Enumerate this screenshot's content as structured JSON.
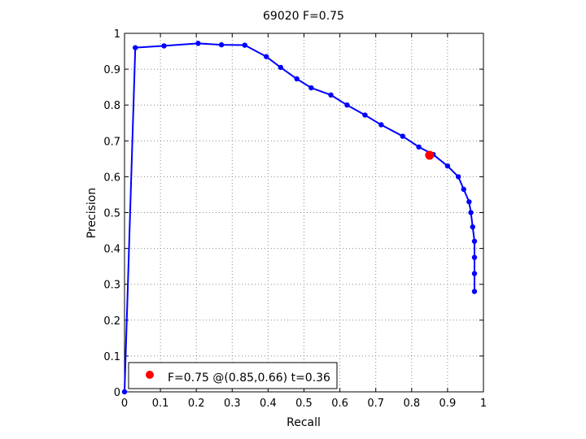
{
  "chart_data": {
    "type": "line",
    "title": "69020 F=0.75",
    "xlabel": "Recall",
    "ylabel": "Precision",
    "xlim": [
      0,
      1
    ],
    "ylim": [
      0,
      1
    ],
    "grid": true,
    "xticks": [
      "0",
      "0.1",
      "0.2",
      "0.3",
      "0.4",
      "0.5",
      "0.6",
      "0.7",
      "0.8",
      "0.9",
      "1"
    ],
    "yticks": [
      "0",
      "0.1",
      "0.2",
      "0.3",
      "0.4",
      "0.5",
      "0.6",
      "0.7",
      "0.8",
      "0.9",
      "1"
    ],
    "series": [
      {
        "color": "#0000ff",
        "x": [
          0.0,
          0.03,
          0.11,
          0.205,
          0.27,
          0.335,
          0.395,
          0.435,
          0.48,
          0.52,
          0.575,
          0.62,
          0.67,
          0.715,
          0.775,
          0.82,
          0.86,
          0.9,
          0.93,
          0.945,
          0.96,
          0.965,
          0.97,
          0.975,
          0.975,
          0.975,
          0.975
        ],
        "y": [
          0.0,
          0.96,
          0.965,
          0.972,
          0.968,
          0.967,
          0.935,
          0.905,
          0.873,
          0.848,
          0.828,
          0.8,
          0.772,
          0.745,
          0.713,
          0.683,
          0.662,
          0.63,
          0.6,
          0.565,
          0.53,
          0.5,
          0.46,
          0.42,
          0.375,
          0.33,
          0.28
        ]
      }
    ],
    "best_point": {
      "x": 0.85,
      "y": 0.66,
      "color": "#ff0000"
    },
    "legend": {
      "placement": "bottom-left",
      "label": "F=0.75 @(0.85,0.66) t=0.36"
    }
  }
}
